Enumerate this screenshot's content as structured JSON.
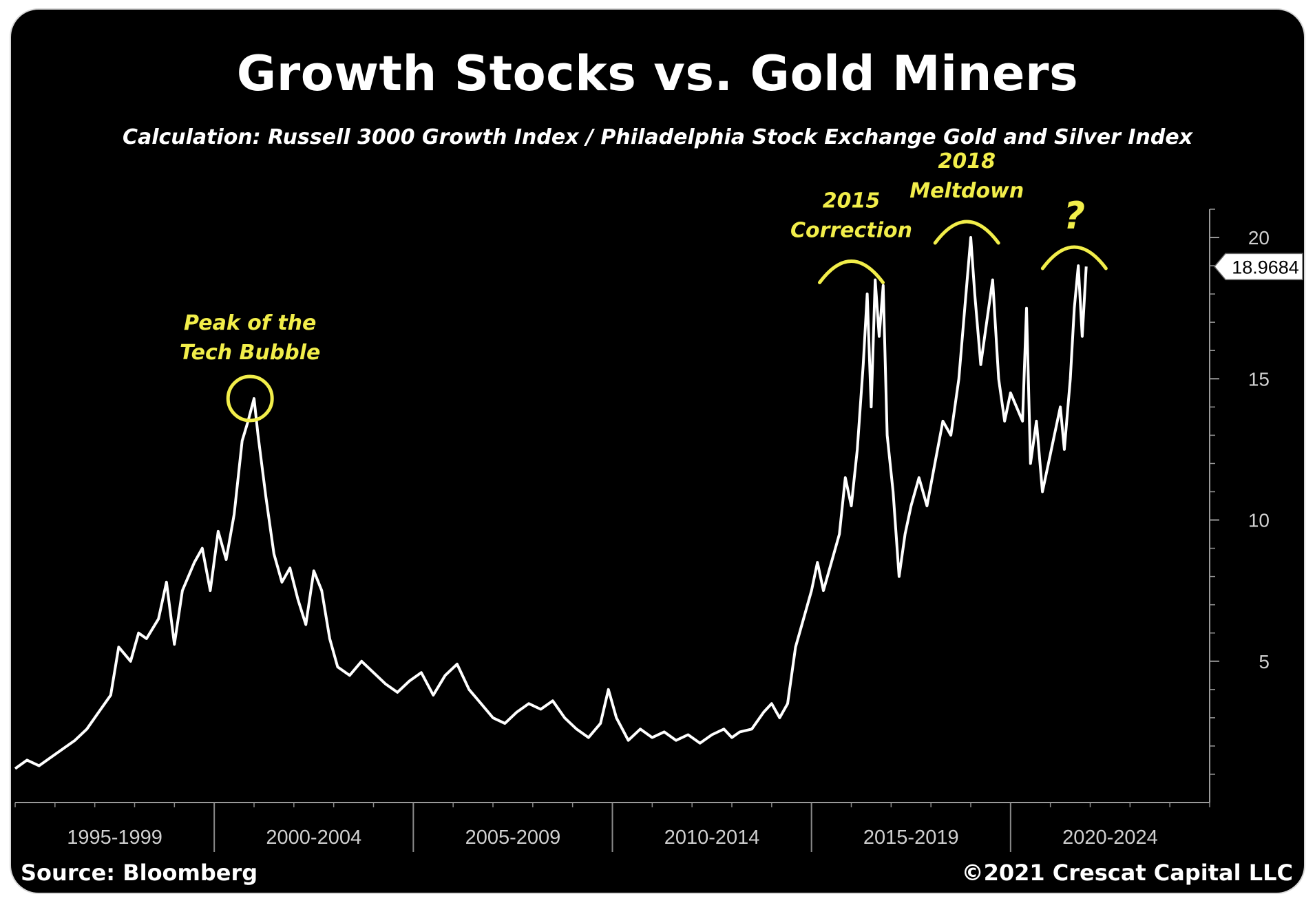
{
  "chart_data": {
    "type": "line",
    "title": "Growth Stocks vs. Gold Miners",
    "subtitle": "Calculation: Russell 3000 Growth Index / Philadelphia Stock Exchange Gold and Silver Index",
    "xlabel": "",
    "ylabel": "",
    "x_range": [
      1994.0,
      2024.0
    ],
    "ylim": [
      0,
      21
    ],
    "yticks": [
      5,
      10,
      15,
      20
    ],
    "x_groups": [
      "1995-1999",
      "2000-2004",
      "2005-2009",
      "2010-2014",
      "2015-2019",
      "2020-2024"
    ],
    "last_value_label": "18.9684",
    "line_color": "#ffffff",
    "annotation_color": "#f2ee4a",
    "annotations": [
      {
        "text": "Peak of the\nTech Bubble",
        "x": 1999.9,
        "y": 14.3
      },
      {
        "text": "2015\nCorrection",
        "x": 2015.0,
        "y": 18.6
      },
      {
        "text": "2018\nMeltdown",
        "x": 2017.9,
        "y": 20.0
      },
      {
        "text": "?",
        "x": 2020.6,
        "y": 19.1
      }
    ],
    "series": [
      {
        "values": [
          [
            1994.0,
            1.2
          ],
          [
            1994.3,
            1.5
          ],
          [
            1994.6,
            1.3
          ],
          [
            1994.9,
            1.6
          ],
          [
            1995.2,
            1.9
          ],
          [
            1995.5,
            2.2
          ],
          [
            1995.8,
            2.6
          ],
          [
            1996.1,
            3.2
          ],
          [
            1996.4,
            3.8
          ],
          [
            1996.6,
            5.5
          ],
          [
            1996.9,
            5.0
          ],
          [
            1997.1,
            6.0
          ],
          [
            1997.3,
            5.8
          ],
          [
            1997.6,
            6.5
          ],
          [
            1997.8,
            7.8
          ],
          [
            1998.0,
            5.6
          ],
          [
            1998.2,
            7.5
          ],
          [
            1998.5,
            8.5
          ],
          [
            1998.7,
            9.0
          ],
          [
            1998.9,
            7.5
          ],
          [
            1999.1,
            9.6
          ],
          [
            1999.3,
            8.6
          ],
          [
            1999.5,
            10.2
          ],
          [
            1999.7,
            12.8
          ],
          [
            1999.85,
            13.5
          ],
          [
            2000.0,
            14.3
          ],
          [
            2000.1,
            13.0
          ],
          [
            2000.3,
            10.8
          ],
          [
            2000.5,
            8.8
          ],
          [
            2000.7,
            7.8
          ],
          [
            2000.9,
            8.3
          ],
          [
            2001.1,
            7.2
          ],
          [
            2001.3,
            6.3
          ],
          [
            2001.5,
            8.2
          ],
          [
            2001.7,
            7.5
          ],
          [
            2001.9,
            5.8
          ],
          [
            2002.1,
            4.8
          ],
          [
            2002.4,
            4.5
          ],
          [
            2002.7,
            5.0
          ],
          [
            2003.0,
            4.6
          ],
          [
            2003.3,
            4.2
          ],
          [
            2003.6,
            3.9
          ],
          [
            2003.9,
            4.3
          ],
          [
            2004.2,
            4.6
          ],
          [
            2004.5,
            3.8
          ],
          [
            2004.8,
            4.5
          ],
          [
            2005.1,
            4.9
          ],
          [
            2005.4,
            4.0
          ],
          [
            2005.7,
            3.5
          ],
          [
            2006.0,
            3.0
          ],
          [
            2006.3,
            2.8
          ],
          [
            2006.6,
            3.2
          ],
          [
            2006.9,
            3.5
          ],
          [
            2007.2,
            3.3
          ],
          [
            2007.5,
            3.6
          ],
          [
            2007.8,
            3.0
          ],
          [
            2008.1,
            2.6
          ],
          [
            2008.4,
            2.3
          ],
          [
            2008.7,
            2.8
          ],
          [
            2008.9,
            4.0
          ],
          [
            2009.1,
            3.0
          ],
          [
            2009.4,
            2.2
          ],
          [
            2009.7,
            2.6
          ],
          [
            2010.0,
            2.3
          ],
          [
            2010.3,
            2.5
          ],
          [
            2010.6,
            2.2
          ],
          [
            2010.9,
            2.4
          ],
          [
            2011.2,
            2.1
          ],
          [
            2011.5,
            2.4
          ],
          [
            2011.8,
            2.6
          ],
          [
            2012.0,
            2.3
          ],
          [
            2012.2,
            2.5
          ],
          [
            2012.5,
            2.6
          ],
          [
            2012.8,
            3.2
          ],
          [
            2013.0,
            3.5
          ],
          [
            2013.2,
            3.0
          ],
          [
            2013.4,
            3.5
          ],
          [
            2013.6,
            5.5
          ],
          [
            2013.8,
            6.5
          ],
          [
            2014.0,
            7.5
          ],
          [
            2014.15,
            8.5
          ],
          [
            2014.3,
            7.5
          ],
          [
            2014.5,
            8.5
          ],
          [
            2014.7,
            9.5
          ],
          [
            2014.85,
            11.5
          ],
          [
            2015.0,
            10.5
          ],
          [
            2015.15,
            12.5
          ],
          [
            2015.3,
            15.5
          ],
          [
            2015.4,
            18.0
          ],
          [
            2015.5,
            14.0
          ],
          [
            2015.6,
            18.5
          ],
          [
            2015.7,
            16.5
          ],
          [
            2015.8,
            18.3
          ],
          [
            2015.9,
            13.0
          ],
          [
            2016.05,
            11.0
          ],
          [
            2016.2,
            8.0
          ],
          [
            2016.35,
            9.5
          ],
          [
            2016.5,
            10.5
          ],
          [
            2016.7,
            11.5
          ],
          [
            2016.9,
            10.5
          ],
          [
            2017.1,
            12.0
          ],
          [
            2017.3,
            13.5
          ],
          [
            2017.5,
            13.0
          ],
          [
            2017.7,
            15.0
          ],
          [
            2017.85,
            17.5
          ],
          [
            2018.0,
            20.0
          ],
          [
            2018.1,
            18.0
          ],
          [
            2018.25,
            15.5
          ],
          [
            2018.4,
            17.0
          ],
          [
            2018.55,
            18.5
          ],
          [
            2018.7,
            15.0
          ],
          [
            2018.85,
            13.5
          ],
          [
            2019.0,
            14.5
          ],
          [
            2019.15,
            14.0
          ],
          [
            2019.3,
            13.5
          ],
          [
            2019.4,
            17.5
          ],
          [
            2019.5,
            12.0
          ],
          [
            2019.65,
            13.5
          ],
          [
            2019.8,
            11.0
          ],
          [
            2019.95,
            12.0
          ],
          [
            2020.1,
            13.0
          ],
          [
            2020.25,
            14.0
          ],
          [
            2020.35,
            12.5
          ],
          [
            2020.5,
            15.0
          ],
          [
            2020.6,
            17.5
          ],
          [
            2020.7,
            19.0
          ],
          [
            2020.8,
            16.5
          ],
          [
            2020.9,
            18.97
          ]
        ]
      }
    ]
  },
  "footer": {
    "source": "Source: Bloomberg",
    "copyright": "©2021 Crescat Capital LLC"
  }
}
